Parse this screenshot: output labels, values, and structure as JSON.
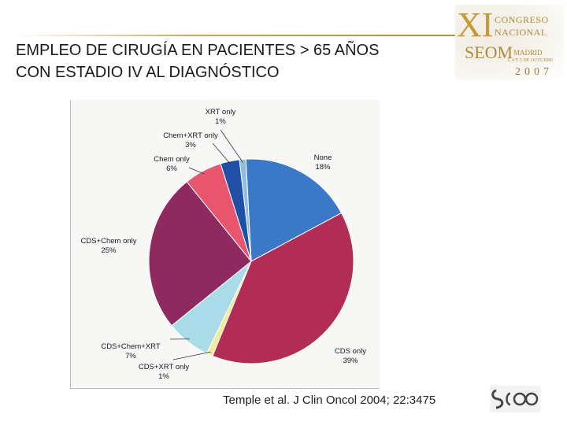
{
  "title": {
    "line1": "EMPLEO DE CIRUGÍA EN PACIENTES > 65 AÑOS",
    "line2": "CON ESTADIO IV AL DIAGNÓSTICO"
  },
  "logo": {
    "numeral": "XI",
    "congreso": "CONGRESO",
    "nacional": "NACIONAL",
    "seom": "SEOM",
    "madrid": "MADRID",
    "dates": "3, 4 Y 5 DE OCTUBRE",
    "year": "2007"
  },
  "citation": "Temple et al. J Clin Oncol 2004; 22:3475",
  "chart_data": {
    "type": "pie",
    "title": "",
    "slices": [
      {
        "label": "None",
        "value": 18,
        "display": "18%",
        "color": "#3b78c8"
      },
      {
        "label": "CDS only",
        "value": 39,
        "display": "39%",
        "color": "#b22d56"
      },
      {
        "label": "CDS+XRT only",
        "value": 1,
        "display": "1%",
        "color": "#f3eb9a"
      },
      {
        "label": "CDS+Chem+XRT",
        "value": 7,
        "display": "7%",
        "color": "#a9dbe9"
      },
      {
        "label": "CDS+Chem only",
        "value": 25,
        "display": "25%",
        "color": "#8e2a60"
      },
      {
        "label": "Chem only",
        "value": 6,
        "display": "6%",
        "color": "#e8566e"
      },
      {
        "label": "Chem+XRT only",
        "value": 3,
        "display": "3%",
        "color": "#1f4fa6"
      },
      {
        "label": "XRT only",
        "value": 1,
        "display": "1%",
        "color": "#8fbde6"
      }
    ]
  }
}
